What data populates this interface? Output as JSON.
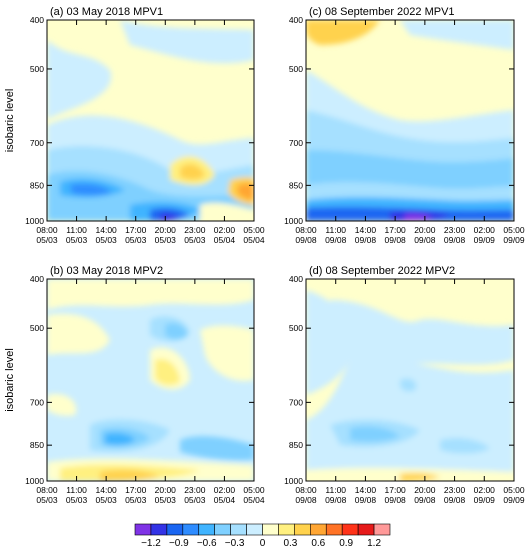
{
  "ylabel": "isobaric level",
  "yticks": [
    400,
    500,
    700,
    850,
    1000
  ],
  "colorbar": {
    "colors": [
      "#7f33e6",
      "#3333e6",
      "#1a66f2",
      "#2e8cff",
      "#40b4ff",
      "#7fd0ff",
      "#a6e0ff",
      "#cceeff",
      "#ffffcc",
      "#fff080",
      "#ffd24d",
      "#ffa633",
      "#ff7326",
      "#ff3319",
      "#e61a1a",
      "#ff9999"
    ],
    "labels": [
      "−1.2",
      "−0.9",
      "−0.6",
      "−0.3",
      "0",
      "0.3",
      "0.6",
      "0.9",
      "1.2"
    ],
    "levels": [
      -1.2,
      -0.9,
      -0.6,
      -0.3,
      0,
      0.3,
      0.6,
      0.9,
      1.2
    ]
  },
  "chart_data": [
    {
      "type": "heatmap",
      "title": "(a) 03 May 2018   MPV1",
      "xticks": [
        [
          "08:00",
          "05/03"
        ],
        [
          "11:00",
          "05/03"
        ],
        [
          "14:00",
          "05/03"
        ],
        [
          "17:00",
          "05/03"
        ],
        [
          "20:00",
          "05/03"
        ],
        [
          "23:00",
          "05/03"
        ],
        [
          "02:00",
          "05/04"
        ],
        [
          "05:00",
          "05/04"
        ]
      ],
      "ylabel": "isobaric level",
      "ylim": [
        1000,
        400
      ]
    },
    {
      "type": "heatmap",
      "title": "(c) 08 September 2022   MPV1",
      "xticks": [
        [
          "08:00",
          "09/08"
        ],
        [
          "11:00",
          "09/08"
        ],
        [
          "14:00",
          "09/08"
        ],
        [
          "17:00",
          "09/08"
        ],
        [
          "20:00",
          "09/08"
        ],
        [
          "23:00",
          "09/08"
        ],
        [
          "02:00",
          "09/09"
        ],
        [
          "05:00",
          "09/09"
        ]
      ],
      "ylim": [
        1000,
        400
      ]
    },
    {
      "type": "heatmap",
      "title": "(b) 03 May 2018   MPV2",
      "xticks": [
        [
          "08:00",
          "05/03"
        ],
        [
          "11:00",
          "05/03"
        ],
        [
          "14:00",
          "05/03"
        ],
        [
          "17:00",
          "05/03"
        ],
        [
          "20:00",
          "05/03"
        ],
        [
          "23:00",
          "05/03"
        ],
        [
          "02:00",
          "05/04"
        ],
        [
          "05:00",
          "05/04"
        ]
      ],
      "ylabel": "isobaric level",
      "ylim": [
        1000,
        400
      ]
    },
    {
      "type": "heatmap",
      "title": "(d) 08 September 2022   MPV2",
      "xticks": [
        [
          "08:00",
          "09/08"
        ],
        [
          "11:00",
          "09/08"
        ],
        [
          "14:00",
          "09/08"
        ],
        [
          "17:00",
          "09/08"
        ],
        [
          "20:00",
          "09/08"
        ],
        [
          "23:00",
          "09/08"
        ],
        [
          "02:00",
          "09/09"
        ],
        [
          "05:00",
          "09/09"
        ]
      ],
      "ylim": [
        1000,
        400
      ]
    }
  ]
}
